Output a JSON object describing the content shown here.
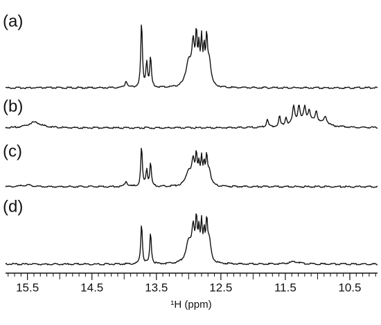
{
  "chart_data": {
    "type": "nmr-stack",
    "x_label": "¹H (ppm)",
    "xlim": [
      15.84,
      10.07
    ],
    "xticks": [
      15.5,
      14.5,
      13.5,
      12.5,
      11.5,
      10.5
    ],
    "minor_tick_step": 0.1,
    "color": "#111111",
    "series": [
      {
        "name": "(a)",
        "peaks": [
          {
            "position": 13.97,
            "height": 8,
            "width": 0.02
          },
          {
            "position": 13.73,
            "height": 80,
            "width": 0.014
          },
          {
            "position": 13.65,
            "height": 30,
            "width": 0.015
          },
          {
            "position": 13.59,
            "height": 36,
            "width": 0.014
          },
          {
            "position": 13.0,
            "height": 30,
            "width": 0.05
          },
          {
            "position": 12.93,
            "height": 45,
            "width": 0.025
          },
          {
            "position": 12.88,
            "height": 55,
            "width": 0.015
          },
          {
            "position": 12.84,
            "height": 40,
            "width": 0.015
          },
          {
            "position": 12.8,
            "height": 50,
            "width": 0.015
          },
          {
            "position": 12.76,
            "height": 38,
            "width": 0.015
          },
          {
            "position": 12.72,
            "height": 52,
            "width": 0.015
          },
          {
            "position": 12.68,
            "height": 30,
            "width": 0.03
          }
        ]
      },
      {
        "name": "(b)",
        "peaks": [
          {
            "position": 15.39,
            "height": 7,
            "width": 0.12
          },
          {
            "position": 11.78,
            "height": 10,
            "width": 0.015
          },
          {
            "position": 11.59,
            "height": 12,
            "width": 0.015
          },
          {
            "position": 11.49,
            "height": 10,
            "width": 0.015
          },
          {
            "position": 11.37,
            "height": 22,
            "width": 0.02
          },
          {
            "position": 11.29,
            "height": 20,
            "width": 0.02
          },
          {
            "position": 11.2,
            "height": 18,
            "width": 0.02
          },
          {
            "position": 11.13,
            "height": 12,
            "width": 0.02
          },
          {
            "position": 11.02,
            "height": 14,
            "width": 0.02
          },
          {
            "position": 10.88,
            "height": 10,
            "width": 0.03
          },
          {
            "position": 11.15,
            "height": 8,
            "width": 0.25
          }
        ]
      },
      {
        "name": "(c)",
        "peaks": [
          {
            "position": 15.5,
            "height": 2,
            "width": 0.1
          },
          {
            "position": 13.97,
            "height": 7,
            "width": 0.02
          },
          {
            "position": 13.73,
            "height": 48,
            "width": 0.014
          },
          {
            "position": 13.65,
            "height": 20,
            "width": 0.015
          },
          {
            "position": 13.59,
            "height": 28,
            "width": 0.014
          },
          {
            "position": 13.0,
            "height": 18,
            "width": 0.05
          },
          {
            "position": 12.93,
            "height": 27,
            "width": 0.025
          },
          {
            "position": 12.88,
            "height": 33,
            "width": 0.015
          },
          {
            "position": 12.84,
            "height": 22,
            "width": 0.015
          },
          {
            "position": 12.8,
            "height": 30,
            "width": 0.015
          },
          {
            "position": 12.76,
            "height": 22,
            "width": 0.015
          },
          {
            "position": 12.72,
            "height": 31,
            "width": 0.015
          },
          {
            "position": 12.68,
            "height": 18,
            "width": 0.03
          }
        ]
      },
      {
        "name": "(d)",
        "peaks": [
          {
            "position": 13.73,
            "height": 50,
            "width": 0.014
          },
          {
            "position": 13.59,
            "height": 38,
            "width": 0.014
          },
          {
            "position": 13.0,
            "height": 25,
            "width": 0.05
          },
          {
            "position": 12.93,
            "height": 38,
            "width": 0.025
          },
          {
            "position": 12.88,
            "height": 47,
            "width": 0.015
          },
          {
            "position": 12.84,
            "height": 33,
            "width": 0.015
          },
          {
            "position": 12.8,
            "height": 43,
            "width": 0.015
          },
          {
            "position": 12.76,
            "height": 32,
            "width": 0.015
          },
          {
            "position": 12.72,
            "height": 44,
            "width": 0.015
          },
          {
            "position": 12.68,
            "height": 26,
            "width": 0.03
          },
          {
            "position": 11.36,
            "height": 3,
            "width": 0.1
          }
        ]
      }
    ]
  }
}
